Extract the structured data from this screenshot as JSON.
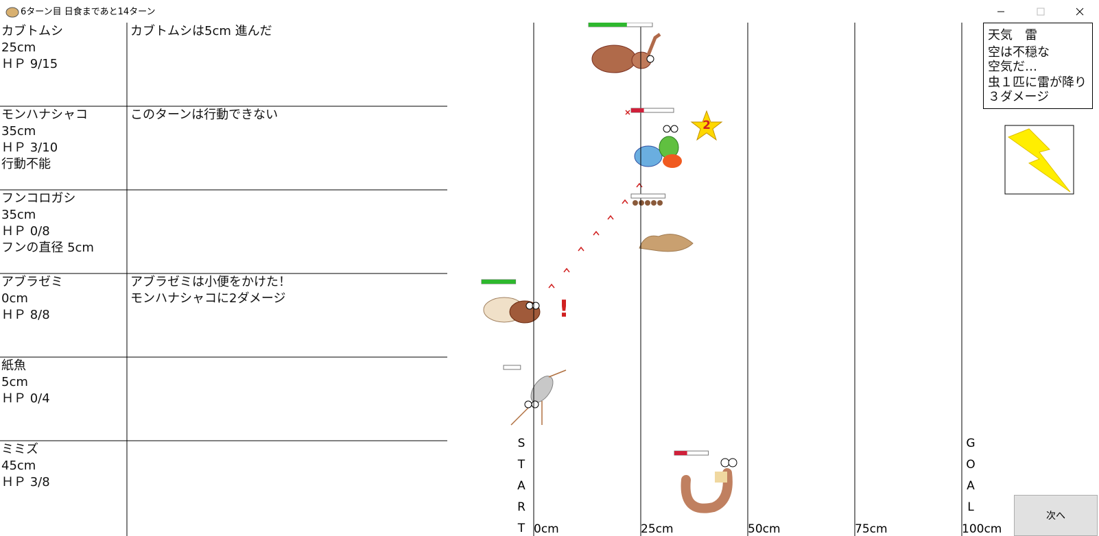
{
  "window": {
    "title": "6ターン目 日食まであと14ターン"
  },
  "insects": [
    {
      "name": "カブトムシ",
      "position": "25cm",
      "hp": "ＨＰ 9/15",
      "messages": [
        "カブトムシは5cm 進んだ"
      ]
    },
    {
      "name": "モンハナシャコ",
      "position": "35cm",
      "hp": "ＨＰ 3/10",
      "status": "行動不能",
      "messages": [
        "このターンは行動できない"
      ]
    },
    {
      "name": "フンコロガシ",
      "position": "35cm",
      "hp": "ＨＰ 0/8",
      "status": "フンの直径 5cm"
    },
    {
      "name": "アブラゼミ",
      "position": "0cm",
      "hp": "ＨＰ 8/8",
      "messages": [
        "アブラゼミは小便をかけた！",
        "モンハナシャコに2ダメージ"
      ]
    },
    {
      "name": "紙魚",
      "position": "5cm",
      "hp": "ＨＰ 0/4"
    },
    {
      "name": "ミミズ",
      "position": "45cm",
      "hp": "ＨＰ 3/8"
    }
  ],
  "track": {
    "ticks": [
      "0cm",
      "25cm",
      "50cm",
      "75cm",
      "100cm"
    ],
    "start": [
      "S",
      "T",
      "A",
      "R",
      "T"
    ],
    "goal": [
      "G",
      "O",
      "A",
      "L"
    ]
  },
  "weather": {
    "title": "天気　雷",
    "description": "空は不穏な空気だ…",
    "effect": "虫１匹に雷が降り３ダメージ"
  },
  "effects": {
    "star": "2",
    "alert": "!"
  },
  "next_button": "次へ"
}
